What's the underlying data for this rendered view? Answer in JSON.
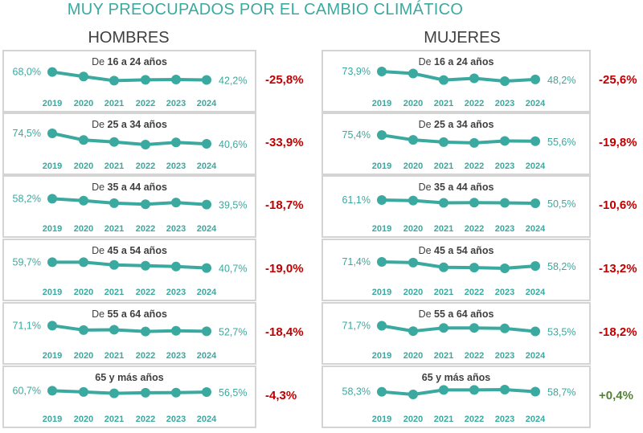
{
  "chart_data": {
    "type": "line",
    "title": "MUY PREOCUPADOS POR EL CAMBIO CLIMÁTICO",
    "x": [
      "2019",
      "2020",
      "2021",
      "2022",
      "2023",
      "2024"
    ],
    "series_color": "#3aa99f",
    "negative_color": "#c00000",
    "positive_color": "#548235",
    "groups": [
      {
        "name": "HOMBRES",
        "panels": [
          {
            "prefix": "De ",
            "title": "16 a 24 años",
            "values": [
              68.0,
              53.3,
              39.8,
              42.5,
              43.5,
              42.2
            ],
            "first_label": "68,0%",
            "last_label": "42,2%",
            "change": "-25,8%"
          },
          {
            "prefix": "De ",
            "title": "25 a 34 años",
            "values": [
              74.5,
              52.9,
              46.7,
              38.1,
              45.1,
              40.6
            ],
            "first_label": "74,5%",
            "last_label": "40,6%",
            "change": "-33,9%"
          },
          {
            "prefix": "De ",
            "title": "35 a 44 años",
            "values": [
              58.2,
              52.0,
              44.0,
              40.5,
              46.0,
              39.5
            ],
            "first_label": "58,2%",
            "last_label": "39,5%",
            "change": "-18,7%"
          },
          {
            "prefix": "De ",
            "title": "45 a 54 años",
            "values": [
              59.7,
              59.5,
              50.8,
              48.2,
              45.5,
              40.7
            ],
            "first_label": "59,7%",
            "last_label": "40,7%",
            "change": "-19,0%"
          },
          {
            "prefix": "De ",
            "title": "55 a 64 años",
            "values": [
              71.1,
              56.8,
              57.8,
              52.0,
              54.3,
              52.7
            ],
            "first_label": "71,1%",
            "last_label": "52,7%",
            "change": "-18,4%"
          },
          {
            "prefix": "",
            "title": "65 y más años",
            "values": [
              60.7,
              56.8,
              52.5,
              54.2,
              54.6,
              56.5
            ],
            "first_label": "60,7%",
            "last_label": "56,5%",
            "change": "-4,3%"
          }
        ]
      },
      {
        "name": "MUJERES",
        "panels": [
          {
            "prefix": "De ",
            "title": "16 a 24 años",
            "values": [
              73.9,
              67.5,
              46.3,
              51.8,
              42.8,
              48.2
            ],
            "first_label": "73,9%",
            "last_label": "48,2%",
            "change": "-25,6%"
          },
          {
            "prefix": "De ",
            "title": "25 a 34 años",
            "values": [
              75.4,
              60.0,
              52.9,
              50.3,
              56.5,
              55.6
            ],
            "first_label": "75,4%",
            "last_label": "55,6%",
            "change": "-19,8%"
          },
          {
            "prefix": "De ",
            "title": "35 a 44 años",
            "values": [
              61.1,
              59.3,
              52.0,
              52.4,
              51.8,
              50.5
            ],
            "first_label": "61,1%",
            "last_label": "50,5%",
            "change": "-10,6%"
          },
          {
            "prefix": "De ",
            "title": "45 a 54 años",
            "values": [
              71.4,
              69.3,
              53.9,
              53.0,
              50.8,
              58.2
            ],
            "first_label": "71,4%",
            "last_label": "58,2%",
            "change": "-13,2%"
          },
          {
            "prefix": "De ",
            "title": "55 a 64 años",
            "values": [
              71.7,
              54.3,
              64.7,
              64.7,
              63.1,
              53.5
            ],
            "first_label": "71,7%",
            "last_label": "53,5%",
            "change": "-18,2%"
          },
          {
            "prefix": "",
            "title": "65 y más años",
            "values": [
              58.3,
              49.7,
              64.3,
              64.3,
              65.3,
              58.7
            ],
            "first_label": "58,3%",
            "last_label": "58,7%",
            "change": "+0,4%"
          }
        ]
      }
    ]
  }
}
